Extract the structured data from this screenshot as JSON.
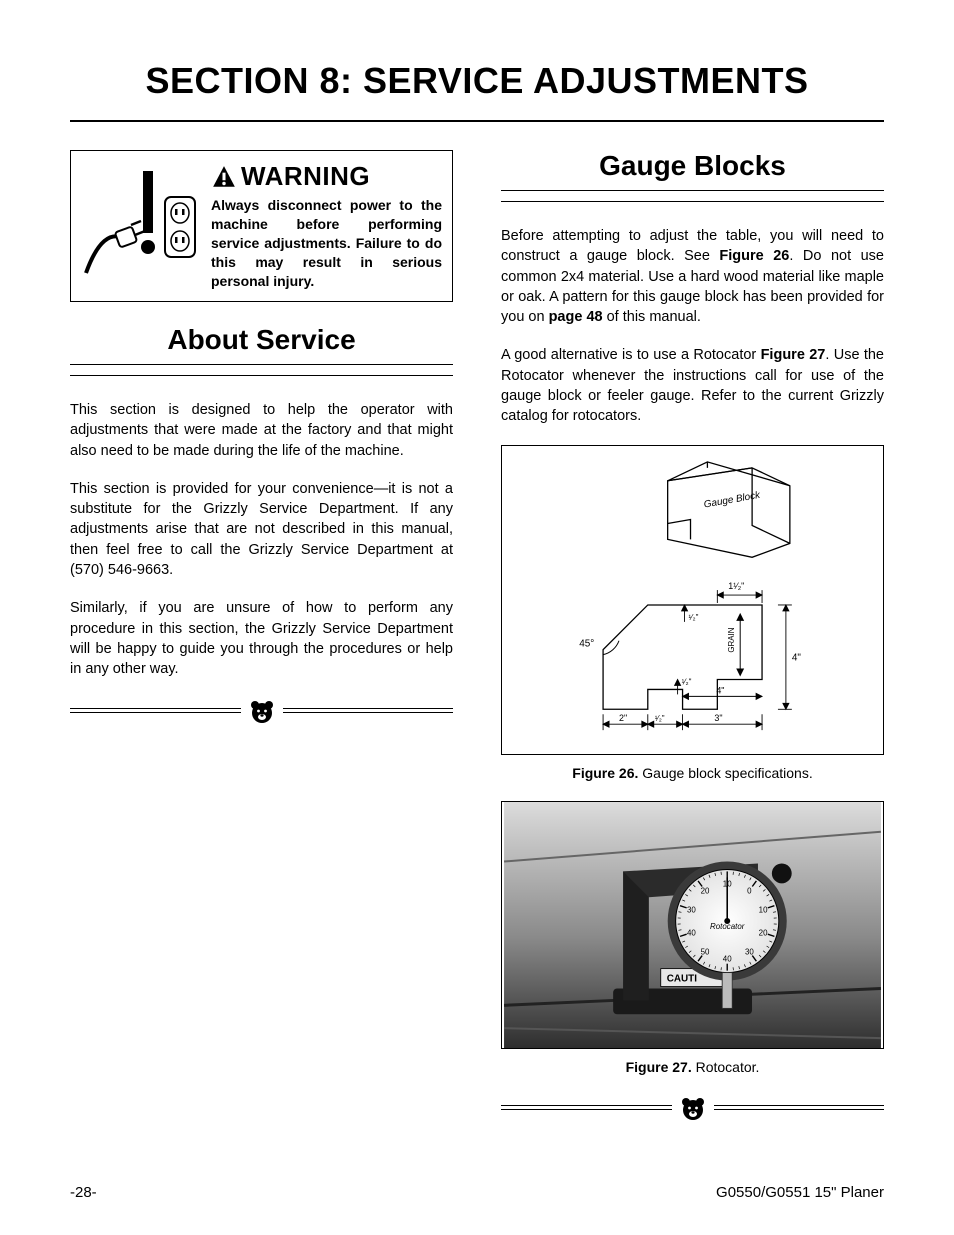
{
  "page": {
    "title": "SECTION 8: SERVICE ADJUSTMENTS",
    "footer_left": "-28-",
    "footer_right": "G0550/G0551 15\" Planer"
  },
  "warning": {
    "label": "WARNING",
    "body": "Always disconnect power to the machine before performing service adjustments. Failure to do this may result in serious personal injury.",
    "icon_names": [
      "power-plug-icon",
      "outlet-icon",
      "exclamation-icon"
    ]
  },
  "about_service": {
    "heading": "About Service",
    "para1": "This section is designed to help the operator with adjustments that were made at the factory and that might also need to be made during the life of the machine.",
    "para2": "This section is provided for your convenience—it is not a substitute for the Grizzly Service Department. If any adjustments arise that are not described in this manual, then feel free to call the Grizzly Service Department at (570) 546-9663.",
    "para3": "Similarly, if you are unsure of how to perform any procedure in this section, the Grizzly Service Department will be happy to guide you through the procedures or help in any other way."
  },
  "gauge_blocks": {
    "heading": "Gauge Blocks",
    "para1_pre": "Before attempting to adjust the table, you will need to construct a gauge block. See ",
    "para1_fig": "Figure 26",
    "para1_mid": ". Do not use common 2x4 material. Use a hard wood material like maple or oak. A pattern for this gauge block has been provided for you on ",
    "para1_page": "page 48",
    "para1_post": " of this manual.",
    "para2_pre": "A good alternative is to use a Rotocator ",
    "para2_fig": "Figure 27",
    "para2_post": ". Use the Rotocator whenever the instructions call for use of the gauge block or feeler gauge. Refer to the current Grizzly catalog for rotocators."
  },
  "figure26": {
    "caption_label": "Figure 26.",
    "caption_text": " Gauge block specifications.",
    "diagram": {
      "block_label": "Gauge Block",
      "angle_label": "45°",
      "grain_label": "GRAIN",
      "dimensions": {
        "top_width": "1¹⁄₂\"",
        "notch_depth_upper": "¹⁄₂\"",
        "notch_depth_lower": "¹⁄₂\"",
        "height_right": "4\"",
        "inner_width": "4\"",
        "bottom_left": "2\"",
        "bottom_mid": "¹⁄₂\"",
        "bottom_right": "3\""
      },
      "colors": {
        "stroke": "#000000",
        "fill": "#ffffff"
      },
      "line_width": 1.2
    }
  },
  "figure27": {
    "caption_label": "Figure 27.",
    "caption_text": " Rotocator.",
    "dial": {
      "ticks": [
        "10",
        "0",
        "10",
        "20",
        "30",
        "40",
        "50",
        "40",
        "30",
        "20"
      ],
      "brand": "Rotocator",
      "caution": "CAUTI"
    },
    "colors": {
      "background_gradient": [
        "#dcdcdc",
        "#8a8a8a",
        "#2e2e2e"
      ],
      "stand": "#1a1a1a",
      "dial_face": "#f2f2f2",
      "dial_rim": "#3a3a3a"
    }
  },
  "styling": {
    "font_family": "Arial, Helvetica, sans-serif",
    "title_fontsize": 36,
    "heading_fontsize": 28,
    "body_fontsize": 14.5,
    "warning_header_fontsize": 26,
    "caption_fontsize": 14,
    "text_color": "#000000",
    "background_color": "#ffffff",
    "rule_color": "#000000"
  }
}
